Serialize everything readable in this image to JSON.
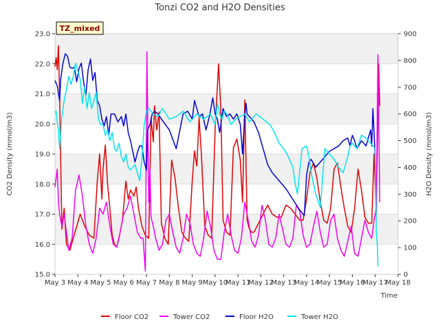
{
  "chart_data": {
    "type": "line",
    "title": "Tonzi CO2 and H2O Densities",
    "badge": "TZ_mixed",
    "xlabel": "Time",
    "ylabel_left": "CO2 Density (mmol/m3)",
    "ylabel_right": "H2O Density (mmol/m3)",
    "x_ticks": [
      "May 3",
      "May 4",
      "May 5",
      "May 6",
      "May 7",
      "May 8",
      "May 9",
      "May 10",
      "May 11",
      "May 12",
      "May 13",
      "May 14",
      "May 15",
      "May 16",
      "May 17",
      "May 18"
    ],
    "xlim": [
      3,
      18
    ],
    "ylim_left": [
      15.0,
      23.0
    ],
    "ylim_right": [
      0,
      900
    ],
    "y_ticks_left": [
      "15.0",
      "16.0",
      "17.0",
      "18.0",
      "19.0",
      "20.0",
      "21.0",
      "22.0",
      "23.0"
    ],
    "y_ticks_right": [
      "0",
      "100",
      "200",
      "300",
      "400",
      "500",
      "600",
      "700",
      "800",
      "900"
    ],
    "grid": "horizontal bands",
    "legend_position": "bottom",
    "series": [
      {
        "name": "Floor CO2",
        "color": "#dd0000",
        "axis": "left",
        "x": [
          3.0,
          3.05,
          3.1,
          3.15,
          3.2,
          3.3,
          3.4,
          3.5,
          3.65,
          3.8,
          3.95,
          4.1,
          4.3,
          4.5,
          4.7,
          4.85,
          4.95,
          5.05,
          5.1,
          5.2,
          5.3,
          5.4,
          5.5,
          5.6,
          5.7,
          5.8,
          5.95,
          6.1,
          6.2,
          6.3,
          6.45,
          6.55,
          6.65,
          6.8,
          6.95,
          7.1,
          7.2,
          7.3,
          7.35,
          7.45,
          7.55,
          7.65,
          7.8,
          7.95,
          8.1,
          8.25,
          8.4,
          8.55,
          8.7,
          8.85,
          9.0,
          9.1,
          9.2,
          9.3,
          9.4,
          9.55,
          9.7,
          9.85,
          10.0,
          10.15,
          10.25,
          10.35,
          10.5,
          10.65,
          10.8,
          10.95,
          11.1,
          11.2,
          11.3,
          11.4,
          11.5,
          11.6,
          11.7,
          11.9,
          12.1,
          12.3,
          12.5,
          12.7,
          12.9,
          13.1,
          13.3,
          13.5,
          13.7,
          13.85,
          14.0,
          14.15,
          14.3,
          14.45,
          14.6,
          14.75,
          14.9,
          15.05,
          15.2,
          15.35,
          15.5,
          15.65,
          15.8,
          15.95,
          16.1,
          16.25,
          16.4,
          16.55,
          16.7,
          16.85,
          16.95,
          17.05,
          17.15,
          17.2
        ],
        "y": [
          21.9,
          22.2,
          21.8,
          22.6,
          21.0,
          16.5,
          17.2,
          16.0,
          15.8,
          16.2,
          16.6,
          17.0,
          16.6,
          16.3,
          16.2,
          18.1,
          19.0,
          17.5,
          18.5,
          19.3,
          18.0,
          17.2,
          16.3,
          16.0,
          15.9,
          16.2,
          16.8,
          18.1,
          17.5,
          17.8,
          17.6,
          17.9,
          17.2,
          16.6,
          16.3,
          16.2,
          20.2,
          19.4,
          20.6,
          19.8,
          20.4,
          16.7,
          16.2,
          16.0,
          18.8,
          18.2,
          17.2,
          16.4,
          16.2,
          16.1,
          18.1,
          19.1,
          18.6,
          20.2,
          19.0,
          16.6,
          16.3,
          16.2,
          19.8,
          22.0,
          20.5,
          16.8,
          16.4,
          16.3,
          19.2,
          19.5,
          18.8,
          17.4,
          20.8,
          16.8,
          16.5,
          16.4,
          16.4,
          16.7,
          17.0,
          17.3,
          17.0,
          16.9,
          16.9,
          17.3,
          17.2,
          17.0,
          16.8,
          16.8,
          17.5,
          18.4,
          18.7,
          18.2,
          17.4,
          16.8,
          16.7,
          17.2,
          18.5,
          18.7,
          17.9,
          17.2,
          16.6,
          16.4,
          17.2,
          18.5,
          17.8,
          16.9,
          16.7,
          16.7,
          19.0,
          17.0,
          22.0,
          20.6
        ]
      },
      {
        "name": "Tower CO2",
        "color": "#ee00ee",
        "axis": "left",
        "x": [
          3.0,
          3.05,
          3.1,
          3.15,
          3.2,
          3.3,
          3.4,
          3.5,
          3.6,
          3.75,
          3.9,
          4.05,
          4.2,
          4.35,
          4.5,
          4.65,
          4.8,
          4.95,
          5.1,
          5.25,
          5.4,
          5.55,
          5.7,
          5.85,
          6.0,
          6.15,
          6.3,
          6.45,
          6.6,
          6.75,
          6.85,
          6.95,
          7.02,
          7.1,
          7.15,
          7.2,
          7.3,
          7.4,
          7.55,
          7.7,
          7.85,
          8.0,
          8.15,
          8.3,
          8.45,
          8.6,
          8.75,
          8.9,
          9.05,
          9.2,
          9.35,
          9.5,
          9.65,
          9.8,
          9.95,
          10.1,
          10.25,
          10.4,
          10.55,
          10.7,
          10.85,
          11.0,
          11.15,
          11.3,
          11.45,
          11.6,
          11.75,
          11.9,
          12.05,
          12.2,
          12.35,
          12.5,
          12.65,
          12.8,
          12.95,
          13.1,
          13.25,
          13.4,
          13.55,
          13.7,
          13.85,
          14.0,
          14.15,
          14.3,
          14.45,
          14.6,
          14.75,
          14.9,
          15.05,
          15.2,
          15.35,
          15.5,
          15.65,
          15.8,
          15.95,
          16.1,
          16.25,
          16.4,
          16.55,
          16.7,
          16.85,
          16.95,
          17.05,
          17.12,
          17.2
        ],
        "y": [
          17.9,
          18.2,
          18.5,
          17.4,
          17.0,
          16.6,
          17.0,
          16.4,
          15.8,
          16.2,
          17.8,
          18.3,
          17.6,
          16.6,
          16.0,
          15.7,
          16.2,
          17.2,
          17.0,
          17.4,
          16.6,
          16.0,
          15.9,
          16.4,
          17.0,
          17.2,
          17.6,
          17.0,
          16.4,
          16.2,
          16.2,
          15.1,
          22.4,
          17.4,
          18.5,
          16.9,
          16.6,
          16.2,
          15.8,
          16.0,
          16.8,
          17.0,
          16.4,
          15.9,
          15.7,
          16.2,
          17.0,
          16.7,
          16.0,
          15.7,
          15.6,
          16.2,
          17.1,
          16.6,
          15.8,
          15.5,
          15.5,
          16.4,
          17.0,
          16.3,
          15.8,
          15.7,
          16.2,
          17.4,
          16.8,
          16.1,
          15.9,
          16.3,
          17.3,
          16.8,
          16.0,
          15.9,
          16.2,
          17.0,
          16.5,
          16.0,
          15.9,
          16.2,
          17.3,
          17.1,
          16.3,
          15.9,
          16.0,
          16.6,
          17.1,
          16.4,
          15.9,
          16.0,
          16.8,
          17.0,
          16.2,
          15.8,
          15.6,
          16.1,
          16.6,
          15.7,
          15.6,
          16.2,
          16.8,
          16.4,
          16.2,
          16.8,
          17.2,
          22.3,
          17.4
        ]
      },
      {
        "name": "Floor H2O",
        "color": "#0000cc",
        "axis": "right",
        "x": [
          3.0,
          3.1,
          3.2,
          3.25,
          3.35,
          3.45,
          3.55,
          3.65,
          3.75,
          3.85,
          3.95,
          4.05,
          4.15,
          4.25,
          4.35,
          4.45,
          4.55,
          4.65,
          4.75,
          4.85,
          4.95,
          5.05,
          5.15,
          5.25,
          5.35,
          5.45,
          5.6,
          5.75,
          5.9,
          6.0,
          6.1,
          6.2,
          6.3,
          6.4,
          6.5,
          6.6,
          6.7,
          6.8,
          6.9,
          7.0,
          7.05,
          7.15,
          7.25,
          7.35,
          7.5,
          7.7,
          8.0,
          8.3,
          8.6,
          8.8,
          9.0,
          9.1,
          9.2,
          9.3,
          9.45,
          9.6,
          9.75,
          9.9,
          10.0,
          10.1,
          10.2,
          10.35,
          10.5,
          10.65,
          10.8,
          10.95,
          11.1,
          11.2,
          11.3,
          11.35,
          11.4,
          11.5,
          11.7,
          11.9,
          12.1,
          12.3,
          12.5,
          12.8,
          13.1,
          13.4,
          13.7,
          13.9,
          14.0,
          14.1,
          14.2,
          14.4,
          14.6,
          14.8,
          15.0,
          15.2,
          15.4,
          15.6,
          15.8,
          15.9,
          16.0,
          16.1,
          16.2,
          16.4,
          16.6,
          16.8,
          16.85,
          16.9,
          17.0
        ],
        "y": [
          725,
          705,
          650,
          730,
          790,
          825,
          815,
          775,
          770,
          775,
          720,
          770,
          790,
          720,
          670,
          765,
          805,
          725,
          755,
          650,
          630,
          580,
          555,
          590,
          520,
          600,
          600,
          570,
          590,
          555,
          600,
          530,
          500,
          460,
          420,
          455,
          480,
          480,
          420,
          390,
          540,
          560,
          600,
          610,
          600,
          575,
          540,
          470,
          600,
          610,
          580,
          650,
          620,
          590,
          600,
          540,
          590,
          660,
          600,
          580,
          530,
          620,
          590,
          600,
          580,
          600,
          560,
          450,
          600,
          640,
          600,
          590,
          570,
          530,
          470,
          410,
          380,
          350,
          320,
          280,
          240,
          220,
          370,
          420,
          430,
          400,
          420,
          440,
          460,
          470,
          480,
          500,
          510,
          480,
          520,
          500,
          470,
          500,
          480,
          540,
          480,
          620,
          440
        ]
      },
      {
        "name": "Tower H2O",
        "color": "#00e5ee",
        "axis": "right",
        "x": [
          3.0,
          3.05,
          3.1,
          3.15,
          3.2,
          3.3,
          3.4,
          3.5,
          3.6,
          3.7,
          3.8,
          3.9,
          4.0,
          4.1,
          4.2,
          4.3,
          4.4,
          4.5,
          4.6,
          4.7,
          4.8,
          4.9,
          5.0,
          5.1,
          5.2,
          5.3,
          5.4,
          5.5,
          5.6,
          5.7,
          5.8,
          5.9,
          6.0,
          6.1,
          6.2,
          6.3,
          6.4,
          6.5,
          6.6,
          6.7,
          6.8,
          6.9,
          7.0,
          7.1,
          7.2,
          7.3,
          7.5,
          7.7,
          8.0,
          8.3,
          8.6,
          8.9,
          9.2,
          9.5,
          9.8,
          10.0,
          10.1,
          10.2,
          10.3,
          10.4,
          10.5,
          10.7,
          10.9,
          11.1,
          11.3,
          11.5,
          11.8,
          12.1,
          12.4,
          12.6,
          12.8,
          13.0,
          13.2,
          13.4,
          13.5,
          13.6,
          13.8,
          14.0,
          14.1,
          14.2,
          14.4,
          14.6,
          14.8,
          15.0,
          15.2,
          15.4,
          15.6,
          15.8,
          15.9,
          16.0,
          16.2,
          16.4,
          16.6,
          16.8,
          17.0,
          17.05,
          17.1,
          17.12
        ],
        "y": [
          605,
          610,
          570,
          540,
          470,
          590,
          650,
          690,
          740,
          710,
          740,
          790,
          760,
          730,
          640,
          700,
          620,
          680,
          620,
          650,
          680,
          580,
          560,
          560,
          520,
          540,
          500,
          530,
          470,
          460,
          490,
          440,
          420,
          450,
          400,
          390,
          400,
          410,
          380,
          350,
          430,
          560,
          610,
          620,
          610,
          600,
          590,
          620,
          580,
          590,
          610,
          570,
          600,
          580,
          600,
          560,
          640,
          600,
          580,
          610,
          600,
          560,
          580,
          590,
          600,
          570,
          600,
          580,
          560,
          530,
          490,
          470,
          440,
          400,
          340,
          300,
          470,
          480,
          440,
          380,
          300,
          250,
          470,
          450,
          430,
          400,
          380,
          440,
          480,
          490,
          470,
          520,
          510,
          490,
          470,
          160,
          100,
          30
        ]
      }
    ]
  }
}
